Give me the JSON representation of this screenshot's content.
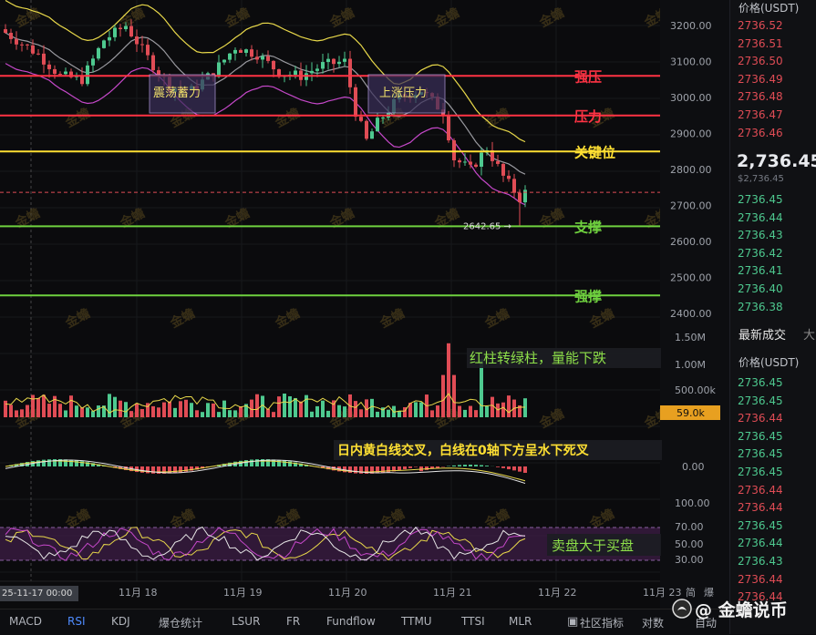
{
  "chart_data": {
    "type": "candlestick",
    "price_axis": {
      "ticks": [
        "3200.00",
        "3100.00",
        "3000.00",
        "2900.00",
        "2800.00",
        "2700.00",
        "2600.00",
        "2500.00",
        "2400.00"
      ],
      "range": [
        2380,
        3250
      ]
    },
    "levels": [
      {
        "label": "强压",
        "price": "3060.00",
        "color": "#ff3344",
        "value": 3060
      },
      {
        "label": "压力",
        "price": "2950.00",
        "color": "#ff3344",
        "value": 2950
      },
      {
        "label": "关键位",
        "price": "2850.00",
        "color": "#ffe033",
        "value": 2850
      },
      {
        "label": "支撑",
        "price": "2642.00",
        "color": "#6fd13f",
        "value": 2642
      },
      {
        "label": "强撑",
        "price": "2450.00",
        "color": "#6fd13f",
        "value": 2450
      }
    ],
    "current_price": "2736.44",
    "low_marker": "2642.65",
    "annotations": {
      "box1": "震荡蓄力",
      "box2": "上涨压力",
      "volume_note": "红柱转绿柱，量能下跌",
      "macd_note": "日内黄白线交叉，白线在0轴下方呈水下死叉",
      "rsi_note": "卖盘大于买盘"
    },
    "volume_axis": {
      "ticks": [
        "1.50M",
        "1.00M",
        "500.00k"
      ],
      "current": "59.0k"
    },
    "macd_axis": {
      "ticks": [
        "0.00"
      ]
    },
    "rsi_axis": {
      "ticks": [
        "100.00",
        "70.00",
        "50.00",
        "30.00"
      ]
    },
    "x_axis": {
      "ticks": [
        "11月 18",
        "11月 19",
        "11月 20",
        "11月 21",
        "11月 22",
        "11月 23"
      ],
      "cursor_date": "25-11-17 00:00"
    },
    "watermark": "金蟾"
  },
  "right_panel": {
    "header": "价格(USDT)",
    "asks": [
      "2736.52",
      "2736.51",
      "2736.50",
      "2736.49",
      "2736.48",
      "2736.47",
      "2736.46"
    ],
    "last_price": "2,736.45",
    "last_price_sub": "$2,736.45",
    "bids": [
      "2736.45",
      "2736.44",
      "2736.43",
      "2736.42",
      "2736.41",
      "2736.40",
      "2736.38"
    ],
    "trades_title": "最新成交",
    "trades_title_extra": "大",
    "trades_header": "价格(USDT)",
    "trades": [
      {
        "p": "2736.45",
        "c": "#4ec98f"
      },
      {
        "p": "2736.45",
        "c": "#4ec98f"
      },
      {
        "p": "2736.44",
        "c": "#e04c55"
      },
      {
        "p": "2736.45",
        "c": "#4ec98f"
      },
      {
        "p": "2736.45",
        "c": "#4ec98f"
      },
      {
        "p": "2736.45",
        "c": "#4ec98f"
      },
      {
        "p": "2736.44",
        "c": "#e04c55"
      },
      {
        "p": "2736.44",
        "c": "#e04c55"
      },
      {
        "p": "2736.45",
        "c": "#4ec98f"
      },
      {
        "p": "2736.44",
        "c": "#4ec98f"
      },
      {
        "p": "2736.43",
        "c": "#4ec98f"
      },
      {
        "p": "2736.44",
        "c": "#e04c55"
      },
      {
        "p": "2736.44",
        "c": "#e04c55"
      }
    ]
  },
  "tabs": [
    "MACD",
    "RSI",
    "KDJ",
    "爆仓统计",
    "LSUR",
    "FR",
    "Fundflow",
    "TTMU",
    "TTSI",
    "MLR"
  ],
  "toolbar_right": [
    "社区指标",
    "对数",
    "自动"
  ],
  "axis_small_labels": [
    "简",
    "爆"
  ],
  "logo": "@ 金蟾说币"
}
